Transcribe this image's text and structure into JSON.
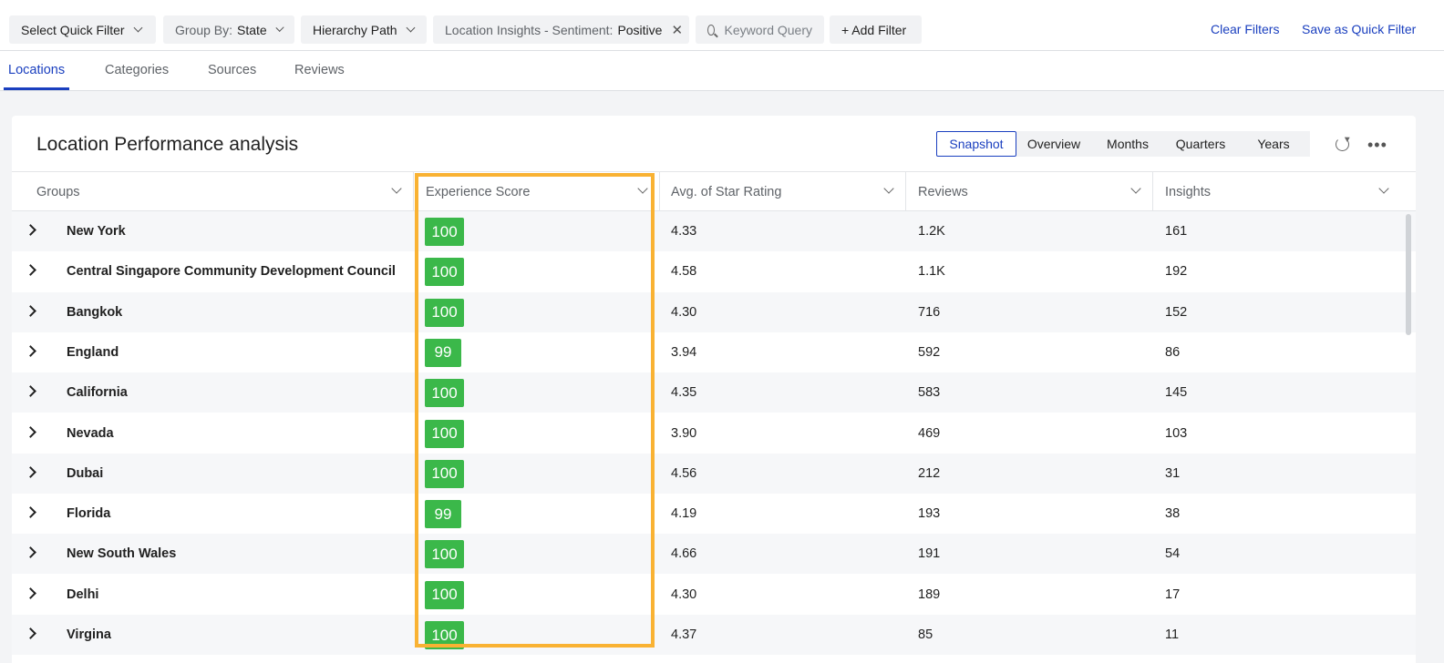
{
  "filters": {
    "quick_filter": "Select Quick Filter",
    "group_by_label": "Group By:",
    "group_by_value": "State",
    "hierarchy": "Hierarchy Path",
    "sentiment_label": "Location Insights - Sentiment:",
    "sentiment_value": "Positive",
    "keyword_placeholder": "Keyword Query",
    "add_filter": "+ Add Filter",
    "clear_filters": "Clear Filters",
    "save_quick_filter": "Save as Quick Filter"
  },
  "tabs": [
    {
      "label": "Locations",
      "active": true
    },
    {
      "label": "Categories",
      "active": false
    },
    {
      "label": "Sources",
      "active": false
    },
    {
      "label": "Reviews",
      "active": false
    }
  ],
  "card": {
    "title": "Location Performance analysis",
    "views": [
      "Snapshot",
      "Overview",
      "Months",
      "Quarters",
      "Years"
    ],
    "active_view": "Snapshot"
  },
  "table": {
    "columns": [
      "Groups",
      "Experience Score",
      "Avg. of Star Rating",
      "Reviews",
      "Insights"
    ],
    "rows": [
      {
        "group": "New York",
        "score": "100",
        "rating": "4.33",
        "reviews": "1.2K",
        "insights": "161"
      },
      {
        "group": "Central Singapore Community Development Council",
        "score": "100",
        "rating": "4.58",
        "reviews": "1.1K",
        "insights": "192"
      },
      {
        "group": "Bangkok",
        "score": "100",
        "rating": "4.30",
        "reviews": "716",
        "insights": "152"
      },
      {
        "group": "England",
        "score": "99",
        "rating": "3.94",
        "reviews": "592",
        "insights": "86"
      },
      {
        "group": "California",
        "score": "100",
        "rating": "4.35",
        "reviews": "583",
        "insights": "145"
      },
      {
        "group": "Nevada",
        "score": "100",
        "rating": "3.90",
        "reviews": "469",
        "insights": "103"
      },
      {
        "group": "Dubai",
        "score": "100",
        "rating": "4.56",
        "reviews": "212",
        "insights": "31"
      },
      {
        "group": "Florida",
        "score": "99",
        "rating": "4.19",
        "reviews": "193",
        "insights": "38"
      },
      {
        "group": "New South Wales",
        "score": "100",
        "rating": "4.66",
        "reviews": "191",
        "insights": "54"
      },
      {
        "group": "Delhi",
        "score": "100",
        "rating": "4.30",
        "reviews": "189",
        "insights": "17"
      },
      {
        "group": "Virgina",
        "score": "100",
        "rating": "4.37",
        "reviews": "85",
        "insights": "11"
      }
    ]
  },
  "colors": {
    "accent": "#1a3fbf",
    "score_badge": "#3bb84a",
    "highlight_box": "#f9b233"
  }
}
